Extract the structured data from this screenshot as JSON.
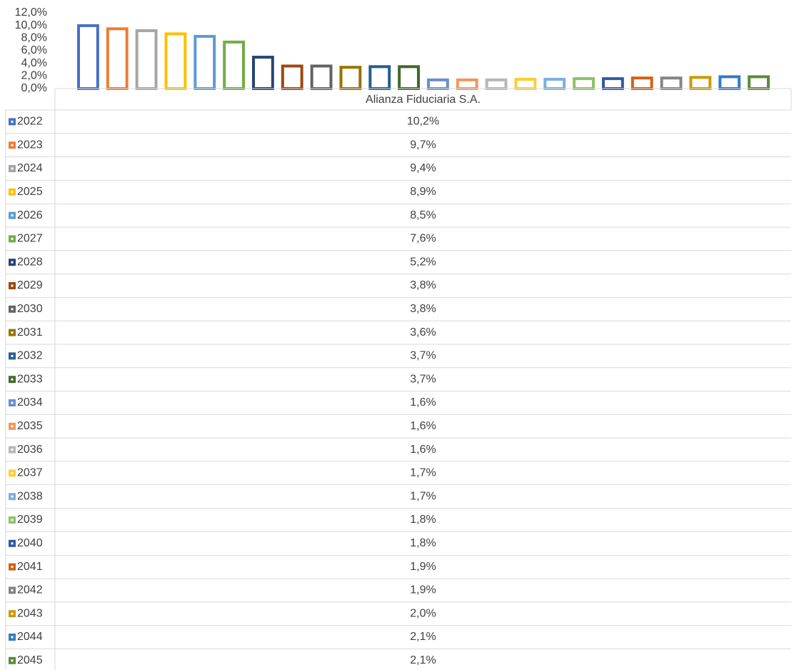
{
  "chart_data": {
    "type": "bar",
    "categories": [
      "Alianza Fiduciaria S.A."
    ],
    "ylim": [
      0,
      12
    ],
    "yticks": [
      {
        "value": 0,
        "label": "0,0%"
      },
      {
        "value": 2,
        "label": "2,0%"
      },
      {
        "value": 4,
        "label": "4,0%"
      },
      {
        "value": 6,
        "label": "6,0%"
      },
      {
        "value": 8,
        "label": "8,0%"
      },
      {
        "value": 10,
        "label": "10,0%"
      },
      {
        "value": 12,
        "label": "12,0%"
      }
    ],
    "series": [
      {
        "name": "2022",
        "color": "#4472C4",
        "values": [
          10.2
        ],
        "value_labels": [
          "10,2%"
        ]
      },
      {
        "name": "2023",
        "color": "#ED7D31",
        "values": [
          9.7
        ],
        "value_labels": [
          "9,7%"
        ]
      },
      {
        "name": "2024",
        "color": "#A5A5A5",
        "values": [
          9.4
        ],
        "value_labels": [
          "9,4%"
        ]
      },
      {
        "name": "2025",
        "color": "#FFC000",
        "values": [
          8.9
        ],
        "value_labels": [
          "8,9%"
        ]
      },
      {
        "name": "2026",
        "color": "#5B9BD5",
        "values": [
          8.5
        ],
        "value_labels": [
          "8,5%"
        ]
      },
      {
        "name": "2027",
        "color": "#70AD47",
        "values": [
          7.6
        ],
        "value_labels": [
          "7,6%"
        ]
      },
      {
        "name": "2028",
        "color": "#264478",
        "values": [
          5.2
        ],
        "value_labels": [
          "5,2%"
        ]
      },
      {
        "name": "2029",
        "color": "#9E480E",
        "values": [
          3.8
        ],
        "value_labels": [
          "3,8%"
        ]
      },
      {
        "name": "2030",
        "color": "#636363",
        "values": [
          3.8
        ],
        "value_labels": [
          "3,8%"
        ]
      },
      {
        "name": "2031",
        "color": "#997300",
        "values": [
          3.6
        ],
        "value_labels": [
          "3,6%"
        ]
      },
      {
        "name": "2032",
        "color": "#255E91",
        "values": [
          3.7
        ],
        "value_labels": [
          "3,7%"
        ]
      },
      {
        "name": "2033",
        "color": "#43682B",
        "values": [
          3.7
        ],
        "value_labels": [
          "3,7%"
        ]
      },
      {
        "name": "2034",
        "color": "#698ED0",
        "values": [
          1.6
        ],
        "value_labels": [
          "1,6%"
        ]
      },
      {
        "name": "2035",
        "color": "#F1975A",
        "values": [
          1.6
        ],
        "value_labels": [
          "1,6%"
        ]
      },
      {
        "name": "2036",
        "color": "#B7B7B7",
        "values": [
          1.6
        ],
        "value_labels": [
          "1,6%"
        ]
      },
      {
        "name": "2037",
        "color": "#FFCD33",
        "values": [
          1.7
        ],
        "value_labels": [
          "1,7%"
        ]
      },
      {
        "name": "2038",
        "color": "#7CAFDD",
        "values": [
          1.7
        ],
        "value_labels": [
          "1,7%"
        ]
      },
      {
        "name": "2039",
        "color": "#8CC168",
        "values": [
          1.8
        ],
        "value_labels": [
          "1,8%"
        ]
      },
      {
        "name": "2040",
        "color": "#335AA1",
        "values": [
          1.8
        ],
        "value_labels": [
          "1,8%"
        ]
      },
      {
        "name": "2041",
        "color": "#D26012",
        "values": [
          1.9
        ],
        "value_labels": [
          "1,9%"
        ]
      },
      {
        "name": "2042",
        "color": "#848484",
        "values": [
          1.9
        ],
        "value_labels": [
          "1,9%"
        ]
      },
      {
        "name": "2043",
        "color": "#CC9A00",
        "values": [
          2.0
        ],
        "value_labels": [
          "2,0%"
        ]
      },
      {
        "name": "2044",
        "color": "#327DC2",
        "values": [
          2.1
        ],
        "value_labels": [
          "2,1%"
        ]
      },
      {
        "name": "2045",
        "color": "#5A8A39",
        "values": [
          2.1
        ],
        "value_labels": [
          "2,1%"
        ]
      }
    ]
  }
}
